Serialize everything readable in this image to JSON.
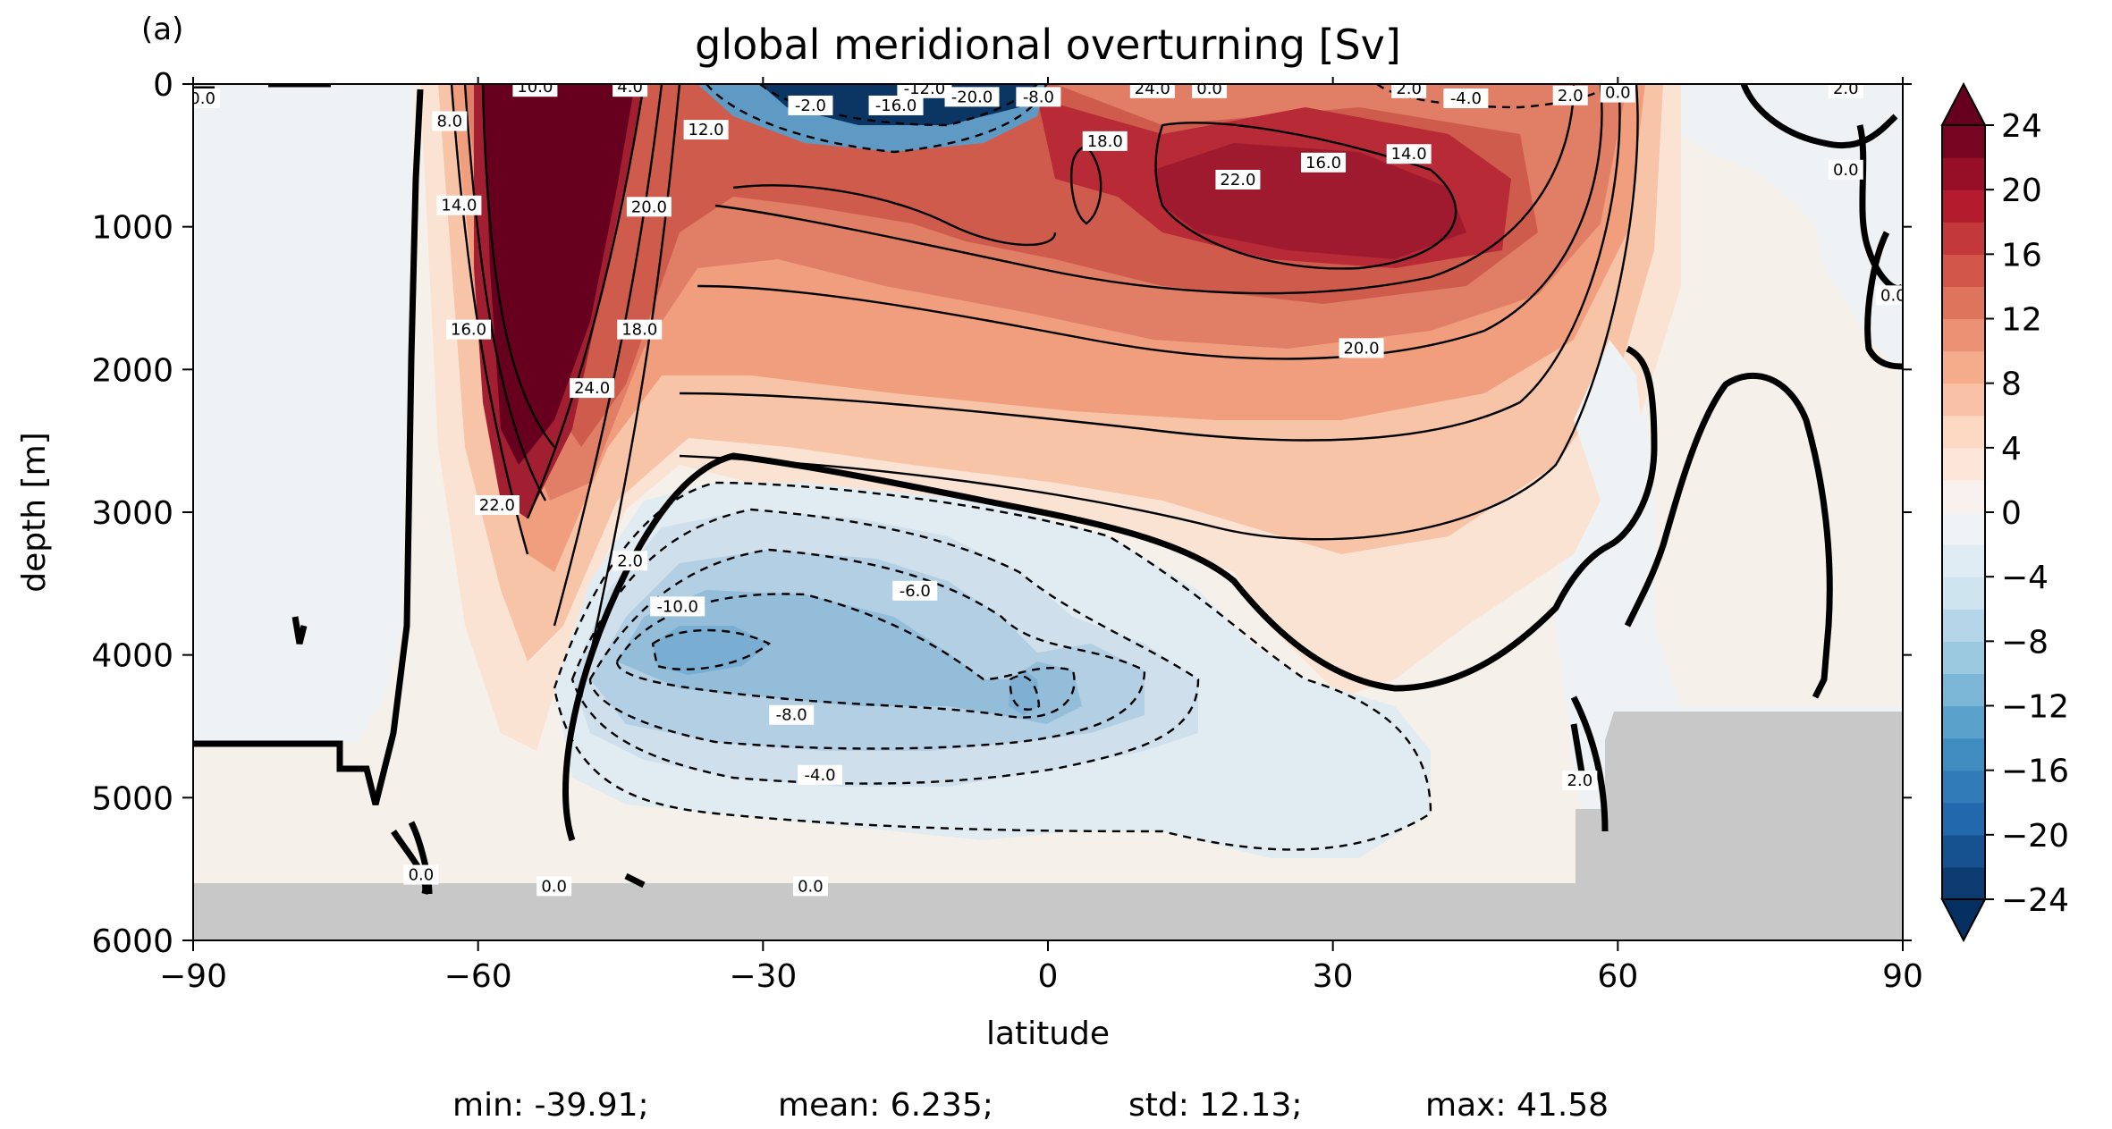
{
  "panel_label": "(a)",
  "stats_line": {
    "min": "min: -39.91;",
    "mean": "mean: 6.235;",
    "std": "std: 12.13;",
    "max": "max: 41.58"
  },
  "colors": {
    "deep_red": "#67001f",
    "red": "#b2182b",
    "light_red": "#f4a582",
    "neutral": "#f7f7f7",
    "light_blue": "#92c5de",
    "blue": "#2166ac",
    "deep_blue": "#053061",
    "topography": "#c8c8c8"
  },
  "chart_data": {
    "type": "contour",
    "title": "global meridional overturning [Sv]",
    "xlabel": "latitude",
    "ylabel": "depth [m]",
    "xlim": [
      -90,
      90
    ],
    "ylim": [
      6000,
      0
    ],
    "y_inverted": true,
    "x_ticks": [
      -90,
      -60,
      -30,
      0,
      30,
      60,
      90
    ],
    "x_tick_labels": [
      "−90",
      "−60",
      "−30",
      "0",
      "30",
      "60",
      "90"
    ],
    "y_ticks": [
      0,
      1000,
      2000,
      3000,
      4000,
      5000,
      6000
    ],
    "y_tick_labels": [
      "0",
      "1000",
      "2000",
      "3000",
      "4000",
      "5000",
      "6000"
    ],
    "colorbar": {
      "range": [
        -24,
        24
      ],
      "step": 2,
      "extend": "both",
      "cmap": "RdBu_r",
      "tick_values": [
        24,
        20,
        16,
        12,
        8,
        4,
        0,
        -4,
        -8,
        -12,
        -16,
        -20,
        -24
      ],
      "tick_labels": [
        "24",
        "20",
        "16",
        "12",
        "8",
        "4",
        "0",
        "−4",
        "−8",
        "−12",
        "−16",
        "−20",
        "−24"
      ]
    },
    "contour_interval": 2,
    "zero_contour": "thick",
    "negative_contours": "dashed",
    "contour_labels": [
      {
        "lat": -54,
        "depth": 20,
        "text": "10.0"
      },
      {
        "lat": -44,
        "depth": 20,
        "text": "4.0"
      },
      {
        "lat": -63,
        "depth": 260,
        "text": "8.0"
      },
      {
        "lat": -62,
        "depth": 850,
        "text": "14.0"
      },
      {
        "lat": -61,
        "depth": 1720,
        "text": "16.0"
      },
      {
        "lat": -36,
        "depth": 320,
        "text": "12.0"
      },
      {
        "lat": -42,
        "depth": 860,
        "text": "20.0"
      },
      {
        "lat": -43,
        "depth": 1720,
        "text": "18.0"
      },
      {
        "lat": -48,
        "depth": 2130,
        "text": "24.0"
      },
      {
        "lat": -58,
        "depth": 2950,
        "text": "22.0"
      },
      {
        "lat": -25,
        "depth": 150,
        "text": "-2.0"
      },
      {
        "lat": -16,
        "depth": 150,
        "text": "-16.0"
      },
      {
        "lat": -8,
        "depth": 90,
        "text": "-20.0"
      },
      {
        "lat": -13,
        "depth": 30,
        "text": "-12.0"
      },
      {
        "lat": -1,
        "depth": 90,
        "text": "-8.0"
      },
      {
        "lat": 11,
        "depth": 30,
        "text": "24.0"
      },
      {
        "lat": 17,
        "depth": 30,
        "text": "0.0"
      },
      {
        "lat": 6,
        "depth": 400,
        "text": "18.0"
      },
      {
        "lat": 20,
        "depth": 670,
        "text": "22.0"
      },
      {
        "lat": 29,
        "depth": 550,
        "text": "16.0"
      },
      {
        "lat": 38,
        "depth": 490,
        "text": "14.0"
      },
      {
        "lat": 33,
        "depth": 1850,
        "text": "20.0"
      },
      {
        "lat": 38,
        "depth": 30,
        "text": "2.0"
      },
      {
        "lat": 44,
        "depth": 100,
        "text": "-4.0"
      },
      {
        "lat": 55,
        "depth": 80,
        "text": "2.0"
      },
      {
        "lat": 60,
        "depth": 60,
        "text": "0.0"
      },
      {
        "lat": 84,
        "depth": 30,
        "text": "2.0"
      },
      {
        "lat": 84,
        "depth": 600,
        "text": "0.0"
      },
      {
        "lat": 89,
        "depth": 1480,
        "text": "0.0"
      },
      {
        "lat": -89,
        "depth": 100,
        "text": "0.0"
      },
      {
        "lat": -44,
        "depth": 3340,
        "text": "2.0"
      },
      {
        "lat": -39,
        "depth": 3660,
        "text": "-10.0"
      },
      {
        "lat": -14,
        "depth": 3550,
        "text": "-6.0"
      },
      {
        "lat": -27,
        "depth": 4420,
        "text": "-8.0"
      },
      {
        "lat": -24,
        "depth": 4840,
        "text": "-4.0"
      },
      {
        "lat": 56,
        "depth": 4880,
        "text": "2.0"
      },
      {
        "lat": -66,
        "depth": 5540,
        "text": "0.0"
      },
      {
        "lat": -52,
        "depth": 5620,
        "text": "0.0"
      },
      {
        "lat": -25,
        "depth": 5620,
        "text": "0.0"
      }
    ]
  }
}
